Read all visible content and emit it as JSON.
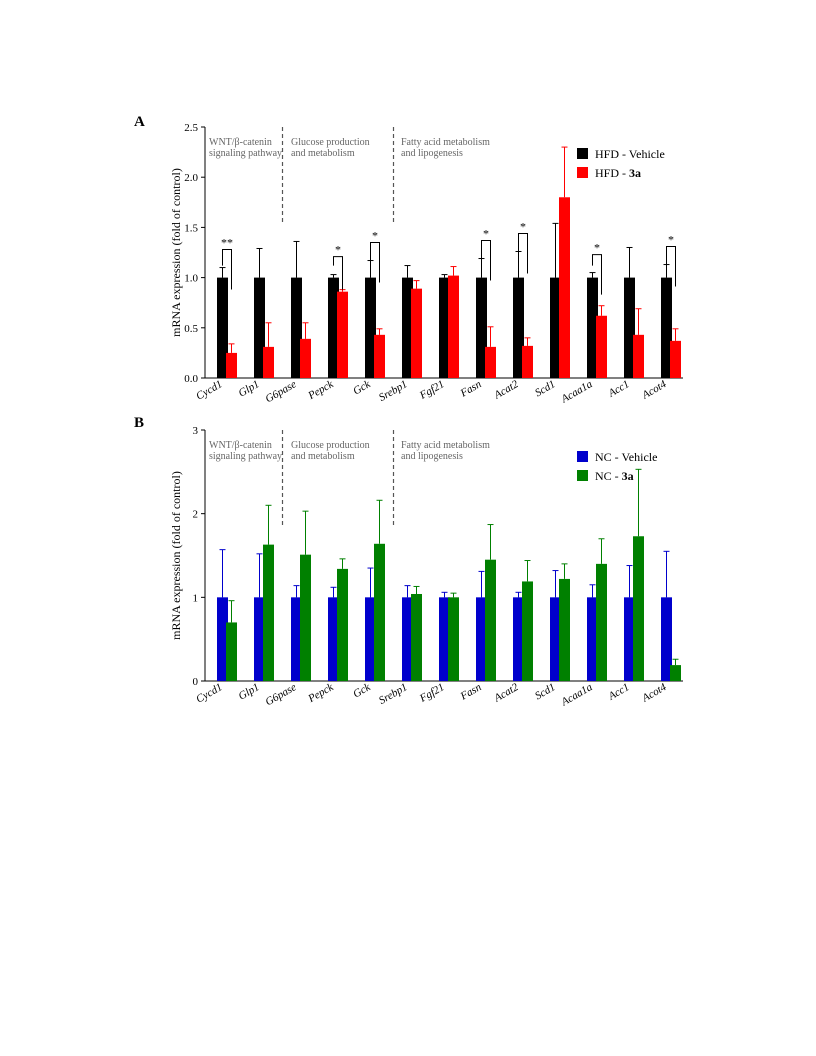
{
  "chart_data": [
    {
      "panel": "A",
      "type": "bar",
      "ylabel": "mRNA expression (fold of control)",
      "ylim": [
        0,
        2.5
      ],
      "yticks": [
        "0.0",
        "0.5",
        "1.0",
        "1.5",
        "2.0",
        "2.5"
      ],
      "yticks_values": [
        0,
        0.5,
        1.0,
        1.5,
        2.0,
        2.5
      ],
      "categories": [
        "Cycd1",
        "Glp1",
        "G6pase",
        "Pepck",
        "Gck",
        "Srebp1",
        "Fgf21",
        "Fasn",
        "Acat2",
        "Scd1",
        "Acaa1a",
        "Acc1",
        "Acot4"
      ],
      "groups": [
        {
          "label_lines": [
            "WNT/β-catenin",
            "signaling pathway"
          ]
        },
        {
          "label_lines": [
            "Glucose production",
            "and metabolism"
          ]
        },
        {
          "label_lines": [
            "Fatty acid metabolism",
            "and lipogenesis"
          ]
        }
      ],
      "series": [
        {
          "name": "HFD - Vehicle",
          "name_prefix": "HFD - ",
          "name_bold": "",
          "color": "#000000",
          "values": [
            1.0,
            1.0,
            1.0,
            1.0,
            1.0,
            1.0,
            1.0,
            1.0,
            1.0,
            1.0,
            1.0,
            1.0,
            1.0
          ],
          "errors": [
            0.1,
            0.29,
            0.36,
            0.03,
            0.17,
            0.12,
            0.03,
            0.19,
            0.26,
            0.54,
            0.05,
            0.3,
            0.13
          ]
        },
        {
          "name": "HFD - 3a",
          "name_prefix": "HFD - ",
          "name_bold": "3a",
          "color": "#ff0000",
          "values": [
            0.25,
            0.31,
            0.39,
            0.86,
            0.43,
            0.89,
            1.02,
            0.31,
            0.32,
            1.8,
            0.62,
            0.43,
            0.37
          ],
          "errors": [
            0.09,
            0.24,
            0.16,
            0.02,
            0.06,
            0.08,
            0.09,
            0.2,
            0.08,
            0.5,
            0.1,
            0.26,
            0.12
          ]
        }
      ],
      "significance": [
        {
          "category": "Cycd1",
          "label": "**"
        },
        {
          "category": "Pepck",
          "label": "*"
        },
        {
          "category": "Gck",
          "label": "*"
        },
        {
          "category": "Fasn",
          "label": "*"
        },
        {
          "category": "Acat2",
          "label": "*"
        },
        {
          "category": "Acaa1a",
          "label": "*"
        },
        {
          "category": "Acot4",
          "label": "*"
        }
      ]
    },
    {
      "panel": "B",
      "type": "bar",
      "ylabel": "mRNA expression (fold of control)",
      "ylim": [
        0,
        3
      ],
      "yticks": [
        "0",
        "1",
        "2",
        "3"
      ],
      "yticks_values": [
        0,
        1,
        2,
        3
      ],
      "categories": [
        "Cycd1",
        "Glp1",
        "G6pase",
        "Pepck",
        "Gck",
        "Srebp1",
        "Fgf21",
        "Fasn",
        "Acat2",
        "Scd1",
        "Acaa1a",
        "Acc1",
        "Acot4"
      ],
      "groups": [
        {
          "label_lines": [
            "WNT/β-catenin",
            "signaling pathway"
          ]
        },
        {
          "label_lines": [
            "Glucose production",
            "and metabolism"
          ]
        },
        {
          "label_lines": [
            "Fatty acid metabolism",
            "and lipogenesis"
          ]
        }
      ],
      "series": [
        {
          "name": "NC - Vehicle",
          "name_prefix": "NC - ",
          "name_bold": "",
          "color": "#0000cc",
          "values": [
            1.0,
            1.0,
            1.0,
            1.0,
            1.0,
            1.0,
            1.0,
            1.0,
            1.0,
            1.0,
            1.0,
            1.0,
            1.0
          ],
          "errors": [
            0.57,
            0.52,
            0.14,
            0.12,
            0.35,
            0.14,
            0.06,
            0.31,
            0.06,
            0.32,
            0.15,
            0.38,
            0.55
          ]
        },
        {
          "name": "NC - 3a",
          "name_prefix": "NC - ",
          "name_bold": "3a",
          "color": "#008000",
          "values": [
            0.7,
            1.63,
            1.51,
            1.34,
            1.64,
            1.04,
            1.0,
            1.45,
            1.19,
            1.22,
            1.4,
            1.73,
            0.19
          ],
          "errors": [
            0.26,
            0.47,
            0.52,
            0.12,
            0.52,
            0.09,
            0.05,
            0.42,
            0.25,
            0.18,
            0.3,
            0.8,
            0.07
          ]
        }
      ],
      "significance": []
    }
  ]
}
